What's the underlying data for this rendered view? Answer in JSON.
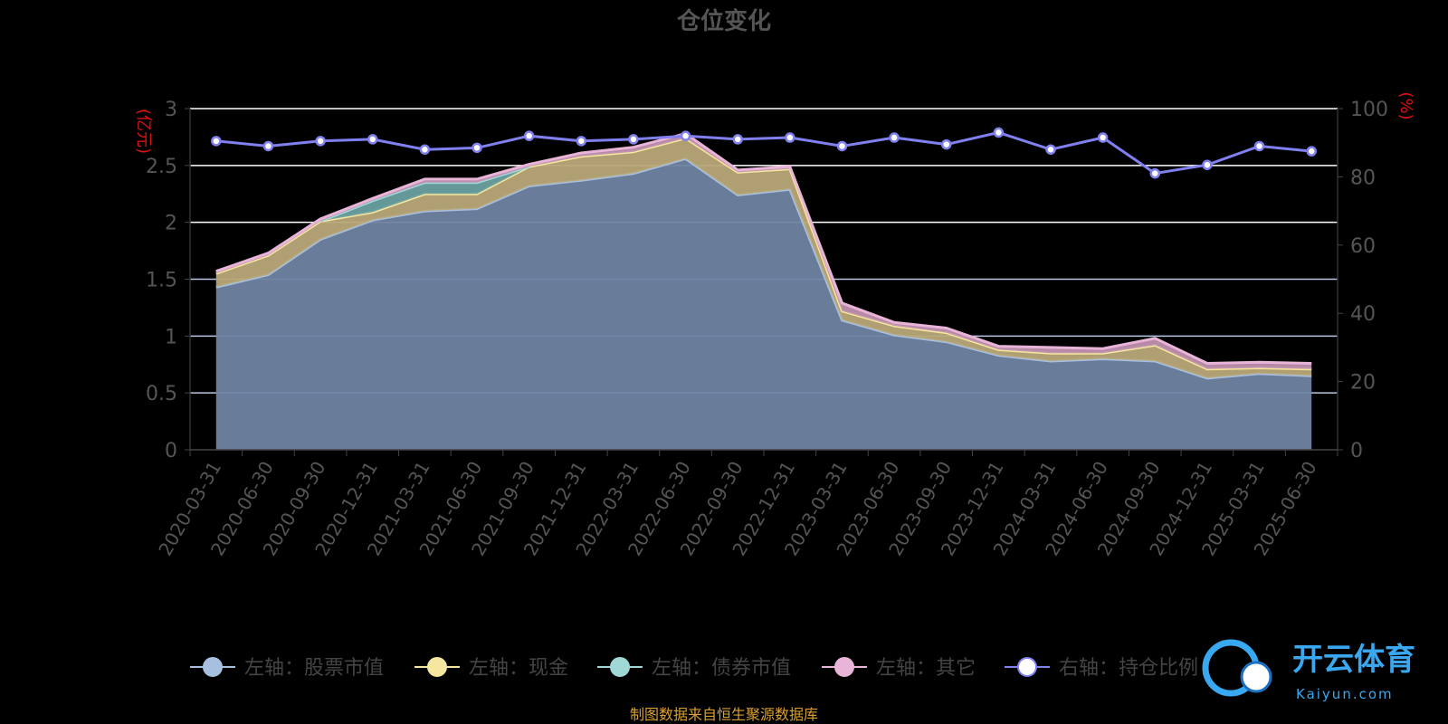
{
  "chart_data": {
    "type": "area",
    "title": "仓位变化",
    "x": [
      "2020-03-31",
      "2020-06-30",
      "2020-09-30",
      "2020-12-31",
      "2021-03-31",
      "2021-06-30",
      "2021-09-30",
      "2021-12-31",
      "2022-03-31",
      "2022-06-30",
      "2022-09-30",
      "2022-12-31",
      "2023-03-31",
      "2023-06-30",
      "2023-09-30",
      "2023-12-31",
      "2024-03-31",
      "2024-06-30",
      "2024-09-30",
      "2024-12-31",
      "2025-03-31",
      "2025-06-30"
    ],
    "y_left": {
      "unit": "(亿元)",
      "ticks": [
        "0",
        "0.5",
        "1",
        "1.5",
        "2",
        "2.5",
        "3"
      ],
      "ylim": [
        0,
        3
      ]
    },
    "y_right": {
      "unit": "(%)",
      "ticks": [
        "0",
        "20",
        "40",
        "60",
        "80",
        "100"
      ],
      "ylim": [
        0,
        100
      ]
    },
    "series": [
      {
        "name": "左轴：股票市值",
        "axis": "left",
        "color": "#a8c0e0",
        "fill": "#6f84a3",
        "values": [
          1.43,
          1.54,
          1.85,
          2.02,
          2.1,
          2.12,
          2.32,
          2.37,
          2.43,
          2.56,
          2.24,
          2.29,
          1.14,
          1.01,
          0.95,
          0.83,
          0.78,
          0.8,
          0.78,
          0.63,
          0.67,
          0.65
        ]
      },
      {
        "name": "左轴：现金",
        "axis": "left",
        "color": "#f5e6a0",
        "fill": "#b8a878",
        "values": [
          0.12,
          0.17,
          0.16,
          0.07,
          0.15,
          0.13,
          0.17,
          0.21,
          0.19,
          0.18,
          0.2,
          0.18,
          0.08,
          0.08,
          0.08,
          0.05,
          0.07,
          0.05,
          0.14,
          0.08,
          0.05,
          0.06
        ]
      },
      {
        "name": "左轴：债券市值",
        "axis": "left",
        "color": "#a0d8d8",
        "fill": "#6aa0a0",
        "values": [
          0,
          0,
          0,
          0.1,
          0.1,
          0.1,
          0,
          0,
          0,
          0,
          0,
          0,
          0,
          0,
          0,
          0,
          0,
          0,
          0,
          0,
          0,
          0
        ]
      },
      {
        "name": "左轴：其它",
        "axis": "left",
        "color": "#e8b4d8",
        "fill": "#c090b0",
        "values": [
          0.02,
          0.02,
          0.02,
          0.02,
          0.03,
          0.03,
          0.02,
          0.03,
          0.04,
          0.04,
          0.02,
          0.02,
          0.07,
          0.03,
          0.04,
          0.03,
          0.05,
          0.04,
          0.06,
          0.05,
          0.05,
          0.05
        ]
      },
      {
        "name": "右轴：持仓比例",
        "axis": "right",
        "color": "#8080f0",
        "values": [
          90.5,
          89,
          90.5,
          91,
          88,
          88.5,
          92,
          90.5,
          91,
          92,
          91,
          91.5,
          89,
          91.5,
          89.5,
          93,
          88,
          91.5,
          81,
          83.5,
          89,
          87.5
        ]
      }
    ],
    "grid": true,
    "legend": "bottom"
  },
  "source_note": "制图数据来自恒生聚源数据库",
  "watermark": {
    "brand": "开云体育",
    "domain": "Kaiyun.com"
  }
}
